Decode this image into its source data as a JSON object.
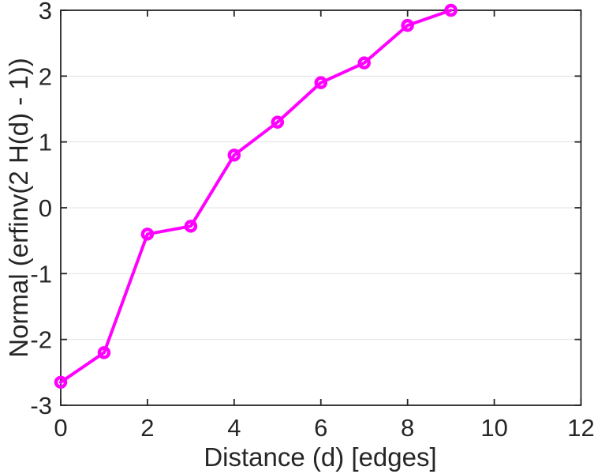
{
  "chart_data": {
    "type": "line",
    "title": "",
    "xlabel": "Distance (d) [edges]",
    "ylabel": "Normal (erfinv(2 H(d) - 1))",
    "x": [
      0,
      1,
      2,
      3,
      4,
      5,
      6,
      7,
      8,
      9
    ],
    "y": [
      -2.65,
      -2.2,
      -0.4,
      -0.28,
      0.8,
      1.3,
      1.9,
      2.2,
      2.77,
      3.0
    ],
    "xlim": [
      0,
      12
    ],
    "ylim": [
      -3,
      3
    ],
    "x_ticks": [
      0,
      2,
      4,
      6,
      8,
      10,
      12
    ],
    "y_ticks": [
      -3,
      -2,
      -1,
      0,
      1,
      2,
      3
    ],
    "grid": "horizontal",
    "legend": "none",
    "marker": "open-circle",
    "colors": {
      "line": "#ff00ff",
      "axis": "#262626",
      "grid": "#e3e3e3",
      "background": "#ffffff"
    }
  }
}
